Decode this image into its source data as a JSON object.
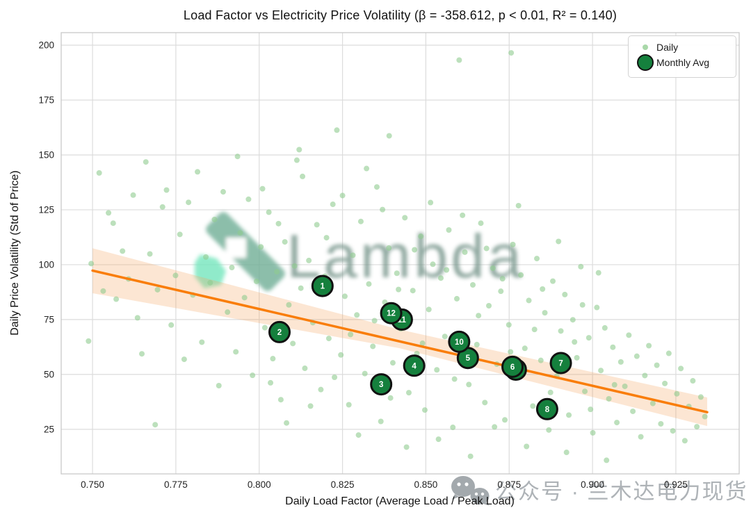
{
  "legend": {
    "daily": "Daily",
    "monthly": "Monthly Avg"
  },
  "watermark": {
    "brand": "Lambda",
    "wechat_text": "公众号 · 兰木达电力现货"
  },
  "colors": {
    "daily": "#8fcb8f",
    "daily_legend": "#a9d8a9",
    "monthly": "#15803d",
    "monthly_stroke": "#111111",
    "monthly_number": "#ffffff",
    "line": "#f97d09",
    "band": "#f5a35c",
    "grid": "#dcdcdc",
    "border": "#c8c8c8",
    "tick_text": "#222222",
    "watermark_band": "#6fae96",
    "watermark_hex": "#74e6bd",
    "watermark_text": "#76948a",
    "wechat_gray": "#9aa0a5",
    "wechat_text_color": "#a6abb0"
  },
  "chart_data": {
    "type": "scatter",
    "title": "Load Factor vs Electricity Price Volatility (β = -358.612, p < 0.01, R² = 0.140)",
    "xlabel": "Daily Load Factor (Average Load / Peak Load)",
    "ylabel": "Daily Price Volatility (Std of Price)",
    "x_domain": [
      0.7406,
      0.944
    ],
    "y_domain": [
      4.7,
      205.7
    ],
    "x_ticks": [
      0.75,
      0.775,
      0.8,
      0.825,
      0.85,
      0.875,
      0.9,
      0.925
    ],
    "x_tick_labels": [
      "0.750",
      "0.775",
      "0.800",
      "0.825",
      "0.850",
      "0.875",
      "0.900",
      "0.925"
    ],
    "y_ticks": [
      25,
      50,
      75,
      100,
      125,
      150,
      175,
      200
    ],
    "y_tick_labels": [
      "25",
      "50",
      "75",
      "100",
      "125",
      "150",
      "175",
      "200"
    ],
    "grid": true,
    "legend_position": "upper right",
    "regression": {
      "beta": -358.612,
      "p": "< 0.01",
      "r2": 0.14,
      "line": {
        "x": [
          0.75,
          0.9344
        ],
        "y": [
          97.3,
          32.8
        ]
      },
      "band": {
        "x": [
          0.75,
          0.842,
          0.9344
        ],
        "upper": [
          107.5,
          70.5,
          39.5
        ],
        "lower": [
          87.0,
          62.0,
          26.5
        ]
      }
    },
    "monthly": {
      "name": "Monthly Avg",
      "draw_order": [
        1,
        2,
        3,
        4,
        7,
        8,
        9,
        6,
        5,
        11,
        10,
        12
      ],
      "points": [
        {
          "m": 1,
          "x": 0.819,
          "y": 90.3
        },
        {
          "m": 2,
          "x": 0.8061,
          "y": 69.3
        },
        {
          "m": 3,
          "x": 0.8366,
          "y": 45.5
        },
        {
          "m": 4,
          "x": 0.8465,
          "y": 54.0
        },
        {
          "m": 5,
          "x": 0.8626,
          "y": 57.5
        },
        {
          "m": 6,
          "x": 0.876,
          "y": 53.5
        },
        {
          "m": 7,
          "x": 0.8905,
          "y": 55.2
        },
        {
          "m": 8,
          "x": 0.8864,
          "y": 34.2
        },
        {
          "m": 9,
          "x": 0.877,
          "y": 52.2
        },
        {
          "m": 10,
          "x": 0.86,
          "y": 64.9
        },
        {
          "m": 11,
          "x": 0.8428,
          "y": 75.0
        },
        {
          "m": 12,
          "x": 0.8396,
          "y": 77.9
        }
      ]
    },
    "daily": {
      "name": "Daily",
      "points": [
        [
          0.7488,
          65.2
        ],
        [
          0.7496,
          100.5
        ],
        [
          0.752,
          141.8
        ],
        [
          0.7532,
          88.0
        ],
        [
          0.7548,
          123.6
        ],
        [
          0.7562,
          118.9
        ],
        [
          0.7571,
          84.3
        ],
        [
          0.759,
          106.2
        ],
        [
          0.7608,
          93.5
        ],
        [
          0.7622,
          131.7
        ],
        [
          0.7635,
          75.8
        ],
        [
          0.7648,
          59.4
        ],
        [
          0.766,
          146.8
        ],
        [
          0.7672,
          104.9
        ],
        [
          0.7688,
          27.1
        ],
        [
          0.7695,
          88.6
        ],
        [
          0.771,
          126.3
        ],
        [
          0.7722,
          134.0
        ],
        [
          0.7736,
          72.5
        ],
        [
          0.7749,
          95.1
        ],
        [
          0.7762,
          113.8
        ],
        [
          0.7775,
          56.9
        ],
        [
          0.7788,
          128.4
        ],
        [
          0.7801,
          86.2
        ],
        [
          0.7815,
          142.3
        ],
        [
          0.7828,
          64.7
        ],
        [
          0.784,
          103.5
        ],
        [
          0.7853,
          91.8
        ],
        [
          0.7866,
          120.6
        ],
        [
          0.7879,
          44.9
        ],
        [
          0.7892,
          133.2
        ],
        [
          0.7905,
          78.4
        ],
        [
          0.7918,
          98.7
        ],
        [
          0.793,
          60.3
        ],
        [
          0.7935,
          149.3
        ],
        [
          0.7943,
          114.5
        ],
        [
          0.7956,
          85.0
        ],
        [
          0.7968,
          129.8
        ],
        [
          0.798,
          49.6
        ],
        [
          0.7992,
          92.4
        ],
        [
          0.8005,
          108.1
        ],
        [
          0.801,
          134.6
        ],
        [
          0.8017,
          71.3
        ],
        [
          0.8029,
          123.9
        ],
        [
          0.8034,
          46.2
        ],
        [
          0.8041,
          57.2
        ],
        [
          0.8053,
          96.8
        ],
        [
          0.8058,
          118.7
        ],
        [
          0.8065,
          38.5
        ],
        [
          0.8077,
          110.4
        ],
        [
          0.8082,
          27.9
        ],
        [
          0.8089,
          81.7
        ],
        [
          0.8101,
          64.1
        ],
        [
          0.8106,
          99.4
        ],
        [
          0.8113,
          147.6
        ],
        [
          0.812,
          152.4
        ],
        [
          0.8125,
          89.3
        ],
        [
          0.813,
          140.2
        ],
        [
          0.8137,
          52.8
        ],
        [
          0.8149,
          101.9
        ],
        [
          0.8154,
          35.6
        ],
        [
          0.8161,
          73.6
        ],
        [
          0.8173,
          118.2
        ],
        [
          0.8178,
          86.9
        ],
        [
          0.8185,
          43.1
        ],
        [
          0.8197,
          94.7
        ],
        [
          0.8202,
          112.3
        ],
        [
          0.8209,
          66.4
        ],
        [
          0.8221,
          127.5
        ],
        [
          0.8226,
          48.7
        ],
        [
          0.8233,
          161.3
        ],
        [
          0.8245,
          58.9
        ],
        [
          0.825,
          131.5
        ],
        [
          0.8257,
          85.6
        ],
        [
          0.8269,
          36.2
        ],
        [
          0.8274,
          68.2
        ],
        [
          0.8281,
          104.3
        ],
        [
          0.8293,
          77.1
        ],
        [
          0.8298,
          22.4
        ],
        [
          0.8305,
          119.7
        ],
        [
          0.8317,
          50.4
        ],
        [
          0.8322,
          143.8
        ],
        [
          0.8329,
          91.2
        ],
        [
          0.8341,
          62.8
        ],
        [
          0.8346,
          74.5
        ],
        [
          0.8353,
          135.4
        ],
        [
          0.8365,
          28.6
        ],
        [
          0.837,
          125.1
        ],
        [
          0.8377,
          82.9
        ],
        [
          0.8389,
          107.6
        ],
        [
          0.839,
          158.7
        ],
        [
          0.8394,
          39.3
        ],
        [
          0.8401,
          55.3
        ],
        [
          0.8413,
          96.1
        ],
        [
          0.8418,
          88.7
        ],
        [
          0.8425,
          70.8
        ],
        [
          0.8437,
          121.4
        ],
        [
          0.8442,
          16.9
        ],
        [
          0.8449,
          41.7
        ],
        [
          0.8461,
          88.2
        ],
        [
          0.8466,
          106.8
        ],
        [
          0.8473,
          59.5
        ],
        [
          0.8485,
          112.9
        ],
        [
          0.849,
          64.2
        ],
        [
          0.8497,
          33.8
        ],
        [
          0.8509,
          79.6
        ],
        [
          0.8514,
          128.3
        ],
        [
          0.8521,
          100.2
        ],
        [
          0.8533,
          52.1
        ],
        [
          0.8538,
          20.5
        ],
        [
          0.8545,
          93.9
        ],
        [
          0.8557,
          67.3
        ],
        [
          0.8562,
          97.6
        ],
        [
          0.8569,
          115.8
        ],
        [
          0.8581,
          25.9
        ],
        [
          0.8586,
          47.9
        ],
        [
          0.8593,
          84.5
        ],
        [
          0.86,
          193.2
        ],
        [
          0.8605,
          58.2
        ],
        [
          0.861,
          122.5
        ],
        [
          0.8617,
          105.7
        ],
        [
          0.8629,
          45.4
        ],
        [
          0.8634,
          12.7
        ],
        [
          0.8641,
          90.8
        ],
        [
          0.8653,
          63.6
        ],
        [
          0.8658,
          76.8
        ],
        [
          0.8665,
          118.9
        ],
        [
          0.8677,
          37.2
        ],
        [
          0.8682,
          107.4
        ],
        [
          0.8689,
          81.3
        ],
        [
          0.8701,
          98.4
        ],
        [
          0.8706,
          26.1
        ],
        [
          0.8713,
          54.7
        ],
        [
          0.8725,
          87.9
        ],
        [
          0.873,
          93.6
        ],
        [
          0.8737,
          29.3
        ],
        [
          0.8749,
          72.6
        ],
        [
          0.8754,
          60.3
        ],
        [
          0.8756,
          196.5
        ],
        [
          0.8761,
          109.2
        ],
        [
          0.8773,
          48.8
        ],
        [
          0.8778,
          126.9
        ],
        [
          0.8785,
          95.3
        ],
        [
          0.8797,
          61.9
        ],
        [
          0.8802,
          17.2
        ],
        [
          0.8809,
          83.7
        ],
        [
          0.8821,
          35.6
        ],
        [
          0.8826,
          70.5
        ],
        [
          0.8833,
          102.8
        ],
        [
          0.8845,
          56.4
        ],
        [
          0.885,
          88.9
        ],
        [
          0.8857,
          78.1
        ],
        [
          0.8869,
          24.7
        ],
        [
          0.8874,
          41.8
        ],
        [
          0.8881,
          92.5
        ],
        [
          0.8893,
          49.2
        ],
        [
          0.8898,
          110.6
        ],
        [
          0.8905,
          69.8
        ],
        [
          0.8917,
          86.4
        ],
        [
          0.8922,
          14.5
        ],
        [
          0.8929,
          31.5
        ],
        [
          0.8941,
          74.9
        ],
        [
          0.8946,
          64.8
        ],
        [
          0.8953,
          57.6
        ],
        [
          0.8965,
          99.1
        ],
        [
          0.897,
          81.7
        ],
        [
          0.8977,
          42.3
        ],
        [
          0.8989,
          66.7
        ],
        [
          0.8994,
          34.1
        ],
        [
          0.9001,
          23.4
        ],
        [
          0.9013,
          80.5
        ],
        [
          0.9018,
          96.3
        ],
        [
          0.9025,
          51.8
        ],
        [
          0.9037,
          71.2
        ],
        [
          0.9042,
          10.9
        ],
        [
          0.9049,
          38.9
        ],
        [
          0.9061,
          62.4
        ],
        [
          0.9066,
          45.3
        ],
        [
          0.9073,
          28.1
        ],
        [
          0.9085,
          55.7
        ],
        [
          0.9097,
          44.6
        ],
        [
          0.9109,
          67.9
        ],
        [
          0.9121,
          33.2
        ],
        [
          0.9133,
          58.3
        ],
        [
          0.9145,
          21.6
        ],
        [
          0.9157,
          49.5
        ],
        [
          0.9169,
          63.1
        ],
        [
          0.9181,
          36.8
        ],
        [
          0.9193,
          54.2
        ],
        [
          0.9205,
          27.5
        ],
        [
          0.9217,
          45.9
        ],
        [
          0.9229,
          59.6
        ],
        [
          0.9241,
          24.3
        ],
        [
          0.9253,
          41.2
        ],
        [
          0.9265,
          52.7
        ],
        [
          0.9277,
          19.8
        ],
        [
          0.9289,
          35.4
        ],
        [
          0.9301,
          47.1
        ],
        [
          0.9313,
          26.2
        ],
        [
          0.9325,
          39.7
        ],
        [
          0.9337,
          30.8
        ]
      ]
    }
  }
}
